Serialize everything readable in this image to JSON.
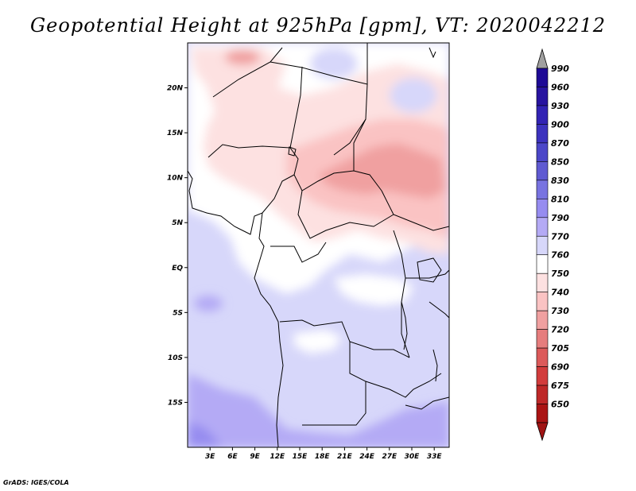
{
  "title": "Geopotential Height at 925hPa [gpm], VT: 2020042212",
  "credit": "GrADS: IGES/COLA",
  "map": {
    "lon_range": [
      0,
      35
    ],
    "lat_range": [
      -20,
      25
    ],
    "lat_ticks": [
      {
        "value": 20,
        "label": "20N"
      },
      {
        "value": 15,
        "label": "15N"
      },
      {
        "value": 10,
        "label": "10N"
      },
      {
        "value": 5,
        "label": "5N"
      },
      {
        "value": 0,
        "label": "EQ"
      },
      {
        "value": -5,
        "label": "5S"
      },
      {
        "value": -10,
        "label": "10S"
      },
      {
        "value": -15,
        "label": "15S"
      }
    ],
    "lon_ticks": [
      {
        "value": 3,
        "label": "3E"
      },
      {
        "value": 6,
        "label": "6E"
      },
      {
        "value": 9,
        "label": "9E"
      },
      {
        "value": 12,
        "label": "12E"
      },
      {
        "value": 15,
        "label": "15E"
      },
      {
        "value": 18,
        "label": "18E"
      },
      {
        "value": 21,
        "label": "21E"
      },
      {
        "value": 24,
        "label": "24E"
      },
      {
        "value": 27,
        "label": "27E"
      },
      {
        "value": 30,
        "label": "30E"
      },
      {
        "value": 33,
        "label": "33E"
      }
    ]
  },
  "colorbar": {
    "levels": [
      {
        "label": "990",
        "color": "#1e0a96"
      },
      {
        "label": "960",
        "color": "#2814a0"
      },
      {
        "label": "930",
        "color": "#3223b4"
      },
      {
        "label": "900",
        "color": "#3c32be"
      },
      {
        "label": "870",
        "color": "#4b46c8"
      },
      {
        "label": "850",
        "color": "#5f5ad2"
      },
      {
        "label": "830",
        "color": "#7873e1"
      },
      {
        "label": "810",
        "color": "#968cf0"
      },
      {
        "label": "790",
        "color": "#b4aaf5"
      },
      {
        "label": "770",
        "color": "#d7d7fa"
      },
      {
        "label": "760",
        "color": "#ffffff"
      },
      {
        "label": "750",
        "color": "#fde1e1"
      },
      {
        "label": "740",
        "color": "#fac3c3"
      },
      {
        "label": "730",
        "color": "#f0a0a0"
      },
      {
        "label": "720",
        "color": "#e67d7d"
      },
      {
        "label": "705",
        "color": "#dc5a5a"
      },
      {
        "label": "690",
        "color": "#d23c3c"
      },
      {
        "label": "675",
        "color": "#be2828"
      },
      {
        "label": "650",
        "color": "#aa1414"
      }
    ],
    "top_arrow_color": "#a0a0a0",
    "bottom_arrow_color": "#a01414"
  }
}
